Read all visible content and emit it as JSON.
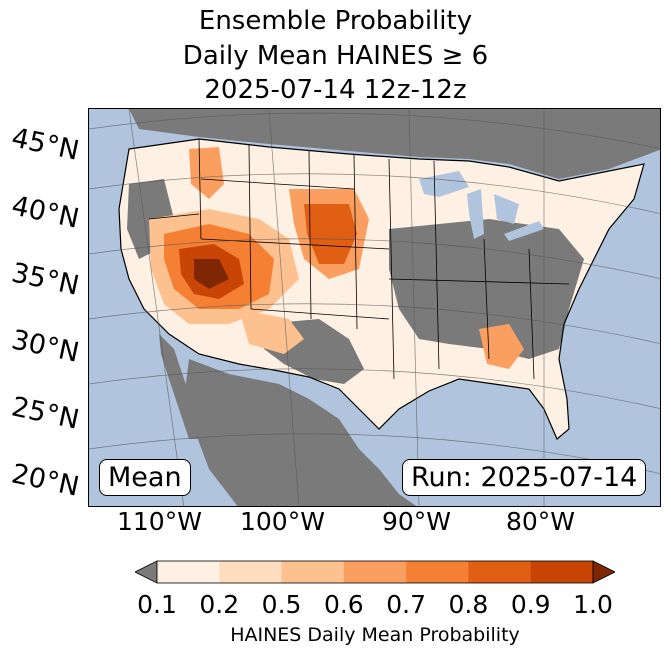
{
  "title": {
    "line1": "Ensemble Probability",
    "line2": "Daily Mean HAINES ≥ 6",
    "line3": "2025-07-14 12z-12z"
  },
  "map": {
    "lat_labels": [
      "45°N",
      "40°N",
      "35°N",
      "30°N",
      "25°N",
      "20°N"
    ],
    "lon_labels": [
      "110°W",
      "100°W",
      "90°W",
      "80°W"
    ],
    "left_box": "Mean",
    "right_box": "Run: 2025-07-14",
    "colors": {
      "ocean": "#b0c4de",
      "land_missing": "#7a7a7a",
      "border": "#000000"
    }
  },
  "colorbar": {
    "ticks": [
      "0.1",
      "0.2",
      "0.5",
      "0.6",
      "0.7",
      "0.8",
      "0.9",
      "1.0"
    ],
    "colors": [
      "#fef0e2",
      "#fdddbd",
      "#fcc18f",
      "#fb9f60",
      "#f57f33",
      "#e15f12",
      "#c84506"
    ],
    "under_color": "#7a7a7a",
    "over_color": "#7f2704",
    "label": "HAINES Daily Mean Probability"
  }
}
